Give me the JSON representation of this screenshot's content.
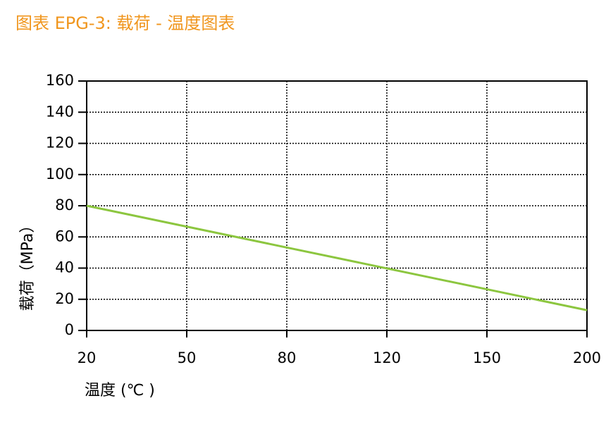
{
  "chart_data": {
    "type": "line",
    "title": "图表 EPG-3: 载荷 - 温度图表",
    "x_label": "温度 (℃ )",
    "y_label": "载荷（MPa）",
    "categories": [
      "20",
      "50",
      "80",
      "120",
      "150",
      "200"
    ],
    "series": [
      {
        "name": "载荷",
        "color": "#8cc63f",
        "values": [
          80,
          66.6,
          53.2,
          39.8,
          26.4,
          13
        ]
      }
    ],
    "ylim": [
      0,
      160
    ],
    "yticks": [
      0,
      20,
      40,
      60,
      80,
      100,
      120,
      140,
      160
    ],
    "grid": true
  }
}
